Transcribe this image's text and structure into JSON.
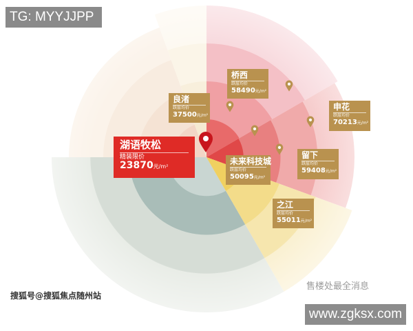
{
  "watermark_top": "TG: MYYJJPP",
  "watermark_bottom_right": "www.zgksx.com",
  "watermark_source": "搜狐号@搜狐焦点随州站",
  "watermark_wechat": "售楼处最全消息",
  "colors": {
    "highlight": "#df2b26",
    "card": "#b9924f",
    "pin_main": "#c8161d",
    "pin": "#b9924f"
  },
  "featured": {
    "name": "湖语牧松",
    "price_label": "精装限价",
    "price": "23870",
    "unit": "元/m²"
  },
  "areas": [
    {
      "name": "良渚",
      "price_label": "跃层均价",
      "price": "37500",
      "unit": "元/m²"
    },
    {
      "name": "桥西",
      "price_label": "跃层均价",
      "price": "58490",
      "unit": "元/m²"
    },
    {
      "name": "申花",
      "price_label": "跃层均价",
      "price": "70213",
      "unit": "元/m²"
    },
    {
      "name": "留下",
      "price_label": "跃层均价",
      "price": "59408",
      "unit": "元/m²"
    },
    {
      "name": "未来科技城",
      "price_label": "跃层均价",
      "price": "50095",
      "unit": "元/m²"
    },
    {
      "name": "之江",
      "price_label": "跃层均价",
      "price": "55011",
      "unit": "元/m²"
    }
  ]
}
